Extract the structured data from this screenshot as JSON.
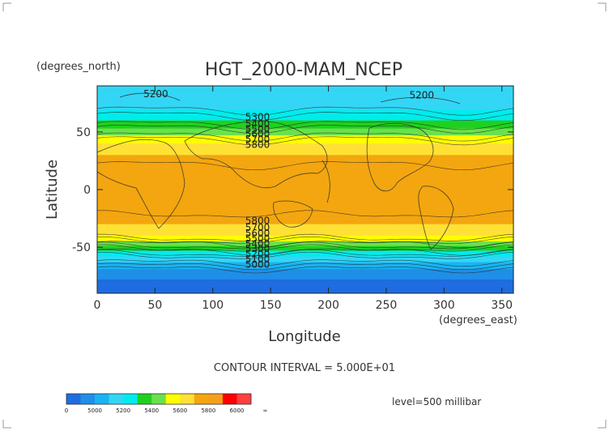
{
  "chart_data": {
    "type": "heatmap",
    "title": "HGT_2000-MAM_NCEP",
    "xlabel": "Longitude",
    "ylabel": "Latitude",
    "x_units": "(degrees_east)",
    "y_units": "(degrees_north)",
    "xlim": [
      0,
      360
    ],
    "ylim": [
      -90,
      90
    ],
    "x_ticks": [
      0,
      50,
      100,
      150,
      200,
      250,
      300,
      350
    ],
    "y_ticks": [
      50,
      0,
      -50
    ],
    "contour_interval_text": "CONTOUR INTERVAL = 5.000E+01",
    "level_text": "level=500 millibar",
    "contour_labels": [
      "5200",
      "5200",
      "5300",
      "5400",
      "5500",
      "5600",
      "5700",
      "5800",
      "5800",
      "5700",
      "5600",
      "5500",
      "5400",
      "5300",
      "5200",
      "5100",
      "5000"
    ],
    "zonal_mean_profile": {
      "lat": [
        90,
        80,
        70,
        60,
        50,
        40,
        30,
        20,
        10,
        0,
        -10,
        -20,
        -30,
        -40,
        -50,
        -60,
        -70,
        -80,
        -90
      ],
      "hgt": [
        5200,
        5240,
        5290,
        5400,
        5550,
        5700,
        5800,
        5860,
        5880,
        5880,
        5880,
        5860,
        5800,
        5700,
        5480,
        5250,
        5080,
        4980,
        4950
      ]
    },
    "colorbar": {
      "tick_labels": [
        "0",
        "5000",
        "5200",
        "5400",
        "5600",
        "5800",
        "6000",
        "∞"
      ],
      "bins": [
        {
          "min": 0,
          "max": 5000,
          "color": "#1f6de0"
        },
        {
          "min": 5000,
          "max": 5100,
          "color": "#1f8fe8"
        },
        {
          "min": 5100,
          "max": 5200,
          "color": "#1ab3f2"
        },
        {
          "min": 5200,
          "max": 5300,
          "color": "#33d6f5"
        },
        {
          "min": 5300,
          "max": 5400,
          "color": "#00ecec"
        },
        {
          "min": 5400,
          "max": 5500,
          "color": "#1fd11f"
        },
        {
          "min": 5500,
          "max": 5600,
          "color": "#6be14b"
        },
        {
          "min": 5600,
          "max": 5700,
          "color": "#ffff00"
        },
        {
          "min": 5700,
          "max": 5800,
          "color": "#ffe135"
        },
        {
          "min": 5800,
          "max": 5900,
          "color": "#f3a60f"
        },
        {
          "min": 5900,
          "max": 6000,
          "color": "#f5a01a"
        },
        {
          "min": 6000,
          "max": 6100,
          "color": "#ff0000"
        },
        {
          "min": 6100,
          "max": 10000,
          "color": "#ff4040"
        }
      ]
    }
  }
}
